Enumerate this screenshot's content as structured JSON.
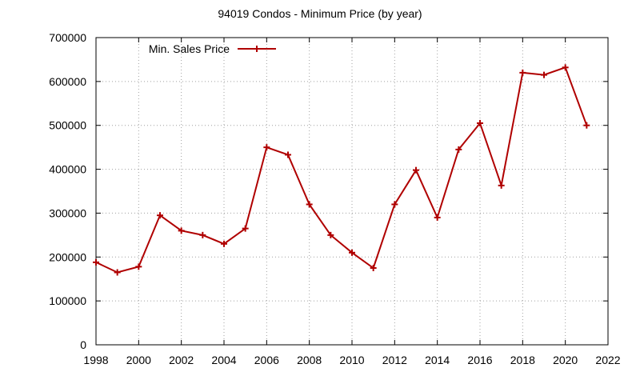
{
  "chart_data": {
    "type": "line",
    "title": "94019 Condos - Minimum Price (by year)",
    "xlabel": "",
    "ylabel": "",
    "xlim": [
      1998,
      2022
    ],
    "ylim": [
      0,
      700000
    ],
    "x_ticks": [
      "1998",
      "2000",
      "2002",
      "2004",
      "2006",
      "2008",
      "2010",
      "2012",
      "2014",
      "2016",
      "2018",
      "2020",
      "2022"
    ],
    "y_ticks": [
      "0",
      "100000",
      "200000",
      "300000",
      "400000",
      "500000",
      "600000",
      "700000"
    ],
    "grid": true,
    "legend": "top-left",
    "series": [
      {
        "name": "Min. Sales Price",
        "color": "#b00000",
        "x": [
          1998,
          1999,
          2000,
          2001,
          2002,
          2003,
          2004,
          2005,
          2006,
          2007,
          2008,
          2009,
          2010,
          2011,
          2012,
          2013,
          2014,
          2015,
          2016,
          2017,
          2018,
          2019,
          2020,
          2021
        ],
        "values": [
          188000,
          165000,
          178000,
          295000,
          260000,
          250000,
          230000,
          265000,
          450000,
          433000,
          320000,
          250000,
          210000,
          175000,
          320000,
          398000,
          290000,
          445000,
          505000,
          363000,
          620000,
          615000,
          632000,
          500000
        ]
      }
    ]
  }
}
